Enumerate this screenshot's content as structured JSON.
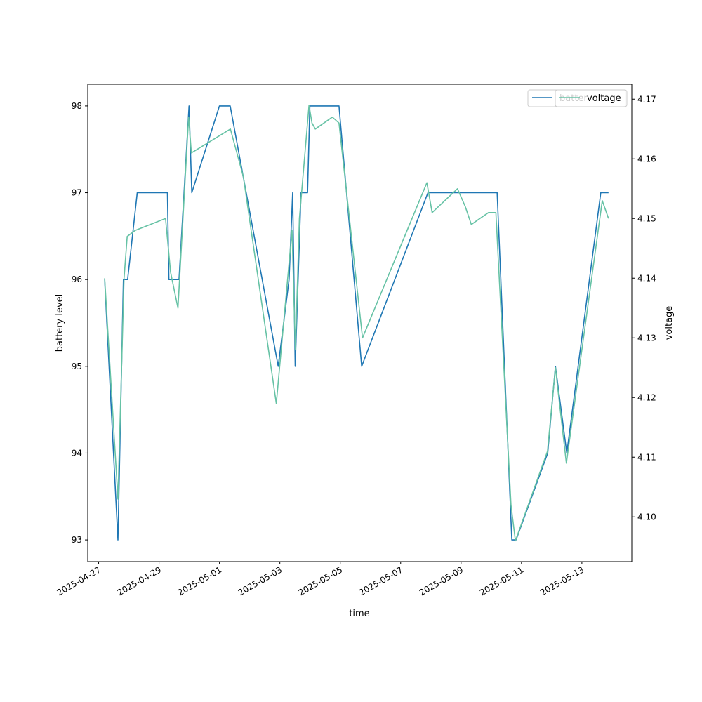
{
  "chart_data": {
    "type": "line",
    "xlabel": "time",
    "ylabel_left": "battery level",
    "ylabel_right": "voltage",
    "xlim": [
      "2025-04-26T15:20",
      "2025-05-14T15:40"
    ],
    "ylim_left": [
      92.75,
      98.25
    ],
    "ylim_right": [
      4.0925,
      4.1725
    ],
    "x_ticks": [
      "2025-04-27",
      "2025-04-29",
      "2025-05-01",
      "2025-05-03",
      "2025-05-05",
      "2025-05-07",
      "2025-05-09",
      "2025-05-11",
      "2025-05-13"
    ],
    "y_ticks_left": [
      93,
      94,
      95,
      96,
      97,
      98
    ],
    "y_ticks_right": [
      4.1,
      4.11,
      4.12,
      4.13,
      4.14,
      4.15,
      4.16,
      4.17
    ],
    "y_tick_labels_right": [
      "4.10",
      "4.11",
      "4.12",
      "4.13",
      "4.14",
      "4.15",
      "4.16",
      "4.17"
    ],
    "legend_position": "top-right",
    "series": [
      {
        "name": "battery level",
        "legend_label": "batter",
        "axis": "left",
        "color": "#1f77b4",
        "points": [
          [
            "2025-04-27T04:45",
            96
          ],
          [
            "2025-04-27T15:20",
            93
          ],
          [
            "2025-04-27T19:40",
            96
          ],
          [
            "2025-04-27T23:00",
            96
          ],
          [
            "2025-04-28T06:40",
            97
          ],
          [
            "2025-04-29T06:40",
            97
          ],
          [
            "2025-04-29T07:50",
            96
          ],
          [
            "2025-04-29T15:50",
            96
          ],
          [
            "2025-04-29T23:50",
            98
          ],
          [
            "2025-04-30T02:00",
            97
          ],
          [
            "2025-05-01T00:00",
            98
          ],
          [
            "2025-05-01T08:30",
            98
          ],
          [
            "2025-05-02T22:40",
            95
          ],
          [
            "2025-05-03T07:20",
            96
          ],
          [
            "2025-05-03T10:10",
            97
          ],
          [
            "2025-05-03T12:10",
            95
          ],
          [
            "2025-05-03T16:50",
            97
          ],
          [
            "2025-05-03T22:00",
            97
          ],
          [
            "2025-05-03T23:50",
            98
          ],
          [
            "2025-05-04T23:00",
            98
          ],
          [
            "2025-05-05T17:00",
            95
          ],
          [
            "2025-05-07T21:40",
            97
          ],
          [
            "2025-05-10T04:40",
            97
          ],
          [
            "2025-05-10T16:20",
            93
          ],
          [
            "2025-05-10T19:40",
            93
          ],
          [
            "2025-05-11T20:50",
            94
          ],
          [
            "2025-05-12T03:00",
            95
          ],
          [
            "2025-05-12T12:00",
            94
          ],
          [
            "2025-05-13T15:00",
            97
          ],
          [
            "2025-05-13T21:10",
            97
          ]
        ]
      },
      {
        "name": "voltage",
        "legend_label": "voltage",
        "axis": "right",
        "color": "#66c2a5",
        "points": [
          [
            "2025-04-27T04:45",
            4.14
          ],
          [
            "2025-04-27T15:20",
            4.103
          ],
          [
            "2025-04-27T20:10",
            4.14
          ],
          [
            "2025-04-27T22:40",
            4.147
          ],
          [
            "2025-04-28T05:00",
            4.148
          ],
          [
            "2025-04-29T05:10",
            4.15
          ],
          [
            "2025-04-29T09:10",
            4.141
          ],
          [
            "2025-04-29T15:00",
            4.135
          ],
          [
            "2025-04-29T23:30",
            4.167
          ],
          [
            "2025-04-30T01:40",
            4.161
          ],
          [
            "2025-05-01T08:40",
            4.165
          ],
          [
            "2025-05-01T19:00",
            4.157
          ],
          [
            "2025-05-02T21:10",
            4.119
          ],
          [
            "2025-05-03T09:40",
            4.148
          ],
          [
            "2025-05-03T12:20",
            4.128
          ],
          [
            "2025-05-03T15:30",
            4.15
          ],
          [
            "2025-05-03T23:10",
            4.169
          ],
          [
            "2025-05-04T01:30",
            4.166
          ],
          [
            "2025-05-04T04:10",
            4.165
          ],
          [
            "2025-05-04T17:40",
            4.167
          ],
          [
            "2025-05-04T23:00",
            4.166
          ],
          [
            "2025-05-05T17:40",
            4.13
          ],
          [
            "2025-05-07T20:50",
            4.156
          ],
          [
            "2025-05-08T01:00",
            4.151
          ],
          [
            "2025-05-08T21:10",
            4.155
          ],
          [
            "2025-05-09T03:20",
            4.152
          ],
          [
            "2025-05-09T08:10",
            4.149
          ],
          [
            "2025-05-09T15:00",
            4.15
          ],
          [
            "2025-05-09T21:50",
            4.151
          ],
          [
            "2025-05-10T03:40",
            4.151
          ],
          [
            "2025-05-10T15:40",
            4.102
          ],
          [
            "2025-05-10T19:10",
            4.096
          ],
          [
            "2025-05-11T20:40",
            4.111
          ],
          [
            "2025-05-12T03:00",
            4.125
          ],
          [
            "2025-05-12T11:40",
            4.109
          ],
          [
            "2025-05-13T16:10",
            4.153
          ],
          [
            "2025-05-13T21:10",
            4.15
          ]
        ]
      }
    ]
  }
}
